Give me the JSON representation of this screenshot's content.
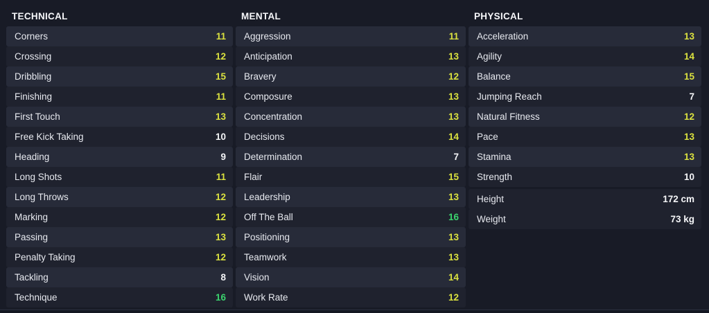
{
  "colors": {
    "page_bg": "#181b26",
    "row_dark": "#1f222e",
    "row_stripe": "#272b39",
    "header_text": "#f6f7fa",
    "label_text": "#e7e9ef",
    "value_yellow": "#dbe23f",
    "value_green": "#3bd46e",
    "value_white": "#f4f5f7",
    "divider": "#2b3040"
  },
  "sections": [
    {
      "id": "technical",
      "title": "TECHNICAL",
      "attributes": [
        {
          "label": "Corners",
          "value": "11",
          "tone": "yellow"
        },
        {
          "label": "Crossing",
          "value": "12",
          "tone": "yellow"
        },
        {
          "label": "Dribbling",
          "value": "15",
          "tone": "yellow"
        },
        {
          "label": "Finishing",
          "value": "11",
          "tone": "yellow"
        },
        {
          "label": "First Touch",
          "value": "13",
          "tone": "yellow"
        },
        {
          "label": "Free Kick Taking",
          "value": "10",
          "tone": "white"
        },
        {
          "label": "Heading",
          "value": "9",
          "tone": "white"
        },
        {
          "label": "Long Shots",
          "value": "11",
          "tone": "yellow"
        },
        {
          "label": "Long Throws",
          "value": "12",
          "tone": "yellow"
        },
        {
          "label": "Marking",
          "value": "12",
          "tone": "yellow"
        },
        {
          "label": "Passing",
          "value": "13",
          "tone": "yellow"
        },
        {
          "label": "Penalty Taking",
          "value": "12",
          "tone": "yellow"
        },
        {
          "label": "Tackling",
          "value": "8",
          "tone": "white"
        },
        {
          "label": "Technique",
          "value": "16",
          "tone": "green"
        }
      ],
      "info": []
    },
    {
      "id": "mental",
      "title": "MENTAL",
      "attributes": [
        {
          "label": "Aggression",
          "value": "11",
          "tone": "yellow"
        },
        {
          "label": "Anticipation",
          "value": "13",
          "tone": "yellow"
        },
        {
          "label": "Bravery",
          "value": "12",
          "tone": "yellow"
        },
        {
          "label": "Composure",
          "value": "13",
          "tone": "yellow"
        },
        {
          "label": "Concentration",
          "value": "13",
          "tone": "yellow"
        },
        {
          "label": "Decisions",
          "value": "14",
          "tone": "yellow"
        },
        {
          "label": "Determination",
          "value": "7",
          "tone": "white"
        },
        {
          "label": "Flair",
          "value": "15",
          "tone": "yellow"
        },
        {
          "label": "Leadership",
          "value": "13",
          "tone": "yellow"
        },
        {
          "label": "Off The Ball",
          "value": "16",
          "tone": "green"
        },
        {
          "label": "Positioning",
          "value": "13",
          "tone": "yellow"
        },
        {
          "label": "Teamwork",
          "value": "13",
          "tone": "yellow"
        },
        {
          "label": "Vision",
          "value": "14",
          "tone": "yellow"
        },
        {
          "label": "Work Rate",
          "value": "12",
          "tone": "yellow"
        }
      ],
      "info": []
    },
    {
      "id": "physical",
      "title": "PHYSICAL",
      "attributes": [
        {
          "label": "Acceleration",
          "value": "13",
          "tone": "yellow"
        },
        {
          "label": "Agility",
          "value": "14",
          "tone": "yellow"
        },
        {
          "label": "Balance",
          "value": "15",
          "tone": "yellow"
        },
        {
          "label": "Jumping Reach",
          "value": "7",
          "tone": "white"
        },
        {
          "label": "Natural Fitness",
          "value": "12",
          "tone": "yellow"
        },
        {
          "label": "Pace",
          "value": "13",
          "tone": "yellow"
        },
        {
          "label": "Stamina",
          "value": "13",
          "tone": "yellow"
        },
        {
          "label": "Strength",
          "value": "10",
          "tone": "white"
        }
      ],
      "info": [
        {
          "label": "Height",
          "value": "172 cm",
          "tone": "white"
        },
        {
          "label": "Weight",
          "value": "73 kg",
          "tone": "white"
        }
      ]
    }
  ]
}
